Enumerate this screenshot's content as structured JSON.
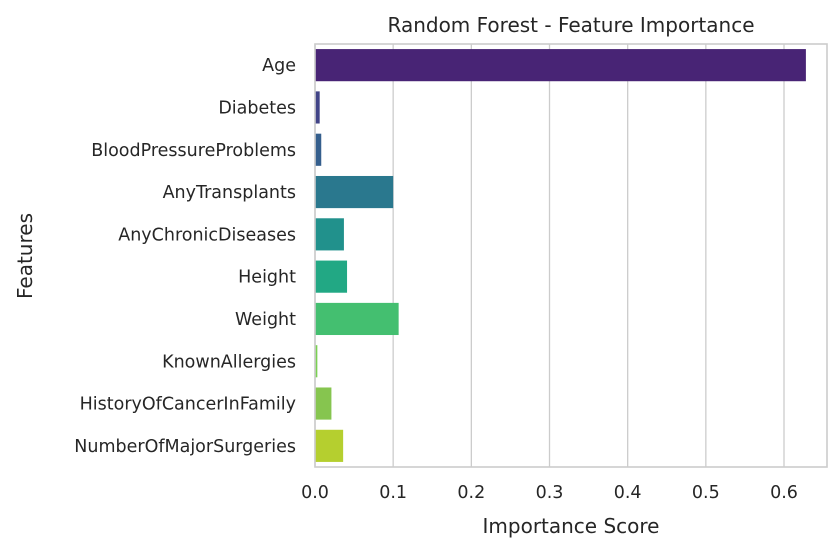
{
  "chart_data": {
    "type": "bar",
    "orientation": "horizontal",
    "title": "Random Forest - Feature Importance",
    "xlabel": "Importance Score",
    "ylabel": "Features",
    "xlim": [
      0,
      0.655
    ],
    "xticks": [
      0.0,
      0.1,
      0.2,
      0.3,
      0.4,
      0.5,
      0.6
    ],
    "xtick_labels": [
      "0.0",
      "0.1",
      "0.2",
      "0.3",
      "0.4",
      "0.5",
      "0.6"
    ],
    "grid": "vertical",
    "categories": [
      "Age",
      "Diabetes",
      "BloodPressureProblems",
      "AnyTransplants",
      "AnyChronicDiseases",
      "Height",
      "Weight",
      "KnownAllergies",
      "HistoryOfCancerInFamily",
      "NumberOfMajorSurgeries"
    ],
    "values": [
      0.628,
      0.006,
      0.008,
      0.1,
      0.037,
      0.041,
      0.107,
      0.003,
      0.021,
      0.036
    ],
    "colors": [
      "#482475",
      "#414487",
      "#355f8d",
      "#2a788e",
      "#21918c",
      "#22a884",
      "#44bf70",
      "#7ad151",
      "#86c54f",
      "#b5cf2f"
    ]
  }
}
